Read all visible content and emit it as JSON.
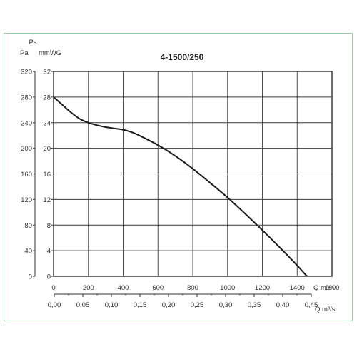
{
  "chart_data": {
    "type": "line",
    "title": "4-1500/250",
    "y_left_axis": {
      "unit": "Pa",
      "quantity": "Ps",
      "range": [
        0,
        320
      ],
      "ticks": [
        "320",
        "280",
        "240",
        "200",
        "160",
        "120",
        "80",
        "40",
        "0"
      ]
    },
    "y_right_axis": {
      "unit": "mmWG",
      "range": [
        0,
        32
      ],
      "ticks": [
        "32",
        "28",
        "24",
        "20",
        "16",
        "12",
        "8",
        "4",
        "0"
      ]
    },
    "x_axis_top": {
      "unit": "Q m³/h",
      "range": [
        0,
        1600
      ],
      "ticks": [
        "0",
        "200",
        "400",
        "600",
        "800",
        "1000",
        "1200",
        "1400",
        "1600"
      ]
    },
    "x_axis_bottom": {
      "unit": "Q m³/s",
      "range": [
        0,
        0.45
      ],
      "ticks": [
        "0,00",
        "0,05",
        "0,10",
        "0,15",
        "0,20",
        "0,25",
        "0,30",
        "0,35",
        "0,40",
        "0,45"
      ]
    },
    "grid": true,
    "series": [
      {
        "color": "#1a1a1a",
        "x": [
          0,
          50,
          100,
          150,
          200,
          250,
          300,
          350,
          400,
          450,
          500,
          600,
          700,
          800,
          900,
          1000,
          1100,
          1200,
          1300,
          1400,
          1450,
          1500,
          1520
        ],
        "y": [
          280,
          268,
          256,
          246,
          240,
          236,
          233,
          231,
          229,
          225,
          219,
          205,
          188,
          168,
          146,
          123,
          98,
          72,
          45,
          17,
          2,
          -10,
          -15
        ]
      }
    ]
  }
}
